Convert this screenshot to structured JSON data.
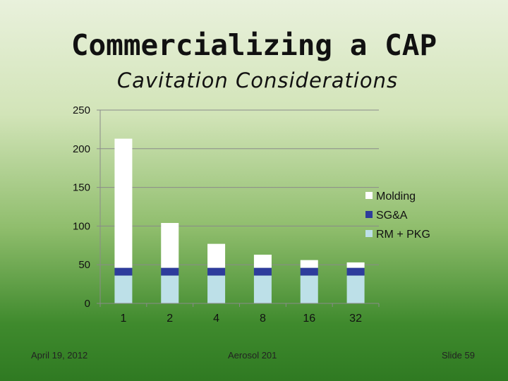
{
  "slide": {
    "title": "Commercializing a CAP",
    "subtitle": "Cavitation Considerations",
    "footer_left": "April 19, 2012",
    "footer_center": "Aerosol 201",
    "footer_right": "Slide 59"
  },
  "chart_data": {
    "type": "bar",
    "stacked": true,
    "categories": [
      "1",
      "2",
      "4",
      "8",
      "16",
      "32"
    ],
    "series": [
      {
        "name": "RM + PKG",
        "color": "#bde0e8",
        "values": [
          36,
          36,
          36,
          36,
          36,
          36
        ]
      },
      {
        "name": "SG&A",
        "color": "#2e3c9c",
        "values": [
          10,
          10,
          10,
          10,
          10,
          10
        ]
      },
      {
        "name": "Molding",
        "color": "#ffffff",
        "values": [
          167,
          58,
          31,
          17,
          10,
          7
        ]
      }
    ],
    "ylim": [
      0,
      250
    ],
    "yticks": [
      0,
      50,
      100,
      150,
      200,
      250
    ],
    "grid": true,
    "legend": "right",
    "title": "",
    "xlabel": "",
    "ylabel": ""
  }
}
